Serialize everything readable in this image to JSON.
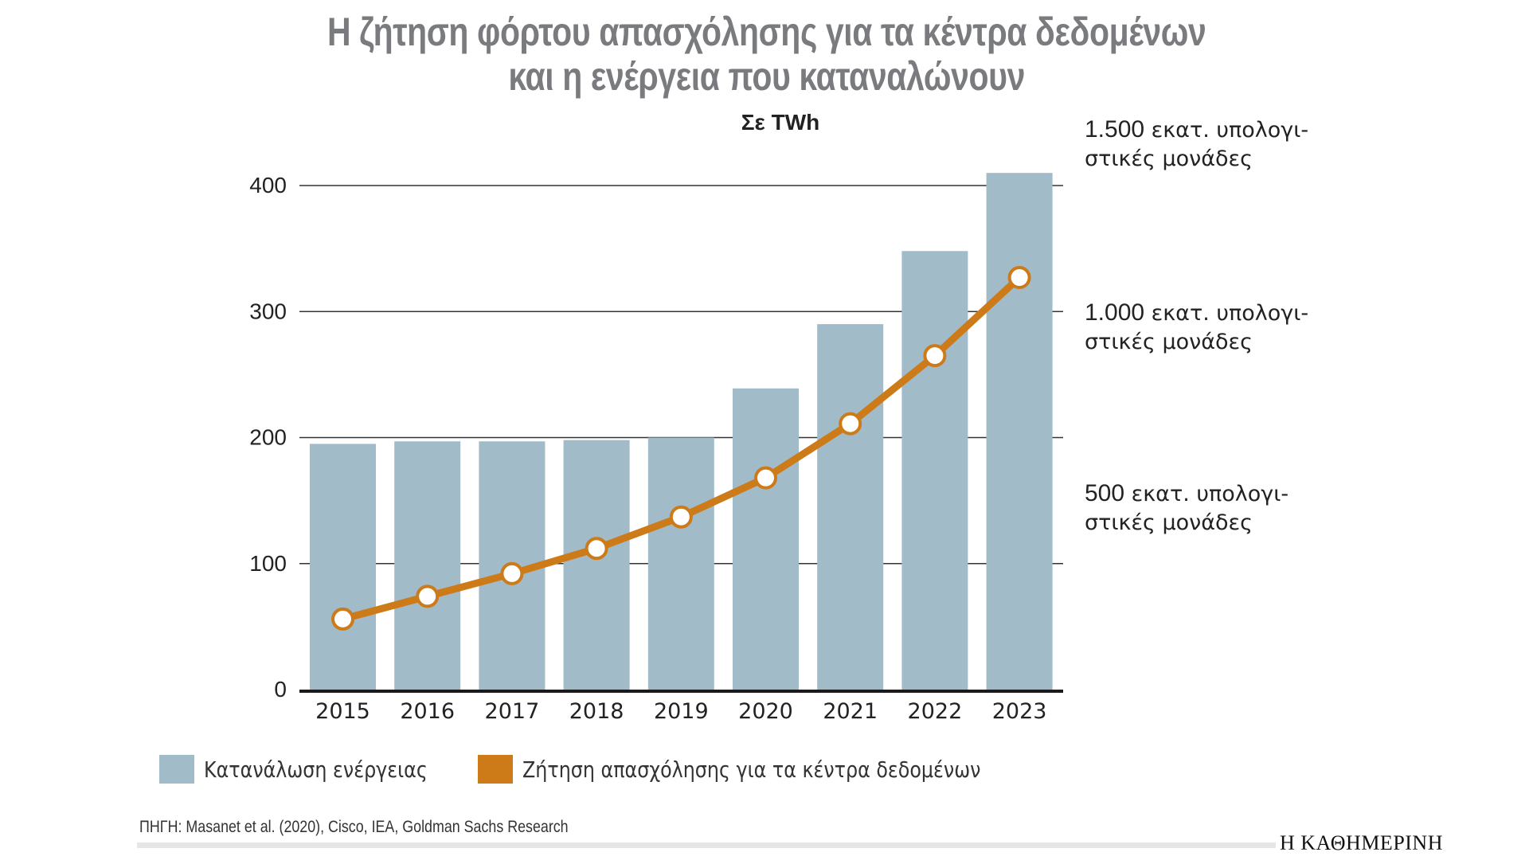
{
  "header": {
    "title_line1": "Η ζήτηση φόρτου απασχόλησης για τα κέντρα δεδομένων",
    "title_line2": "και η ενέργεια που καταναλώνουν",
    "unit_label": "Σε TWh"
  },
  "annotations": [
    {
      "number": "1.500",
      "line1": " εκατ. υπολογι-",
      "line2": "στικές μονάδες"
    },
    {
      "number": "1.000",
      "line1": " εκατ. υπολογι-",
      "line2": "στικές μονάδες"
    },
    {
      "number": "500",
      "line1": " εκατ. υπολογι-",
      "line2": "στικές μονάδες"
    }
  ],
  "legend": [
    {
      "label": "Κατανάλωση ενέργειας",
      "color": "#a2bbc8"
    },
    {
      "label": "Ζήτηση απασχόλησης για τα κέντρα δεδομένων",
      "color": "#cd7a18"
    }
  ],
  "footer": {
    "source": "ΠΗΓΗ: Masanet et al. (2020), Cisco, IEA, Goldman Sachs Research",
    "logo": "Η ΚΑΘΗΜΕΡΙΝΗ"
  },
  "colors": {
    "bar": "#a2bbc8",
    "line": "#cd7a18",
    "title": "#7a7b7e",
    "grid": "#333333"
  },
  "chart_data": {
    "type": "bar",
    "title": "Η ζήτηση φόρτου απασχόλησης για τα κέντρα δεδομένων και η ενέργεια που καταναλώνουν",
    "subtitle": "Σε TWh",
    "xlabel": "",
    "ylabel": "TWh",
    "ylim": [
      0,
      400
    ],
    "yticks": [
      0,
      100,
      200,
      300,
      400
    ],
    "grid": true,
    "legend_position": "bottom-left",
    "categories": [
      "2015",
      "2016",
      "2017",
      "2018",
      "2019",
      "2020",
      "2021",
      "2022",
      "2023"
    ],
    "series": [
      {
        "name": "Κατανάλωση ενέργειας",
        "type": "bar",
        "values": [
          195,
          197,
          197,
          198,
          200,
          239,
          290,
          348,
          410
        ]
      },
      {
        "name": "Ζήτηση απασχόλησης για τα κέντρα δεδομένων",
        "type": "line",
        "values": [
          56,
          74,
          92,
          112,
          137,
          168,
          211,
          265,
          327
        ]
      }
    ],
    "right_axis_annotations": [
      {
        "label": "1.500 εκατ. υπολογιστικές μονάδες",
        "aligned_near": 400
      },
      {
        "label": "1.000 εκατ. υπολογιστικές μονάδες",
        "aligned_near": 300
      },
      {
        "label": "500 εκατ. υπολογιστικές μονάδες",
        "aligned_near": 160
      }
    ]
  }
}
